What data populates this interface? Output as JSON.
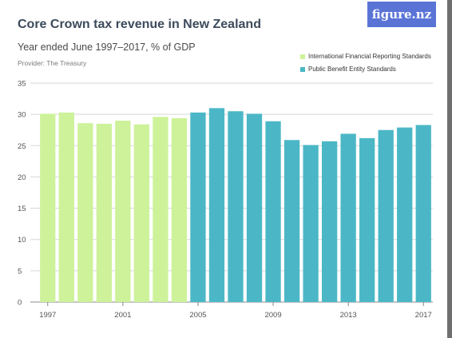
{
  "header": {
    "title": "Core Crown tax revenue in New Zealand",
    "subtitle": "Year ended June 1997–2017, % of GDP",
    "provider": "Provider: The Treasury",
    "logo": "figure.nz"
  },
  "colors": {
    "ifrs": "#cdf29a",
    "pbe": "#4bb7c6",
    "grid": "#d7d7d7",
    "logo_bg": "#5a74d6"
  },
  "chart_data": {
    "type": "bar",
    "categories": [
      "1997",
      "1998",
      "1999",
      "2000",
      "2001",
      "2002",
      "2003",
      "2004",
      "2005",
      "2006",
      "2007",
      "2008",
      "2009",
      "2010",
      "2011",
      "2012",
      "2013",
      "2014",
      "2015",
      "2016",
      "2017"
    ],
    "x_tick_labels": [
      "1997",
      "2001",
      "2005",
      "2009",
      "2013",
      "2017"
    ],
    "series": [
      {
        "name": "International Financial Reporting Standards",
        "color": "#cdf29a",
        "values": [
          30.1,
          30.3,
          28.6,
          28.5,
          29.0,
          28.4,
          29.6,
          29.4,
          null,
          null,
          null,
          null,
          null,
          null,
          null,
          null,
          null,
          null,
          null,
          null,
          null
        ]
      },
      {
        "name": "Public Benefit Entity Standards",
        "color": "#4bb7c6",
        "values": [
          null,
          null,
          null,
          null,
          null,
          null,
          null,
          null,
          30.3,
          31.0,
          30.5,
          30.1,
          28.9,
          25.9,
          25.1,
          25.7,
          26.9,
          26.2,
          27.5,
          27.9,
          28.3
        ]
      }
    ],
    "y_ticks": [
      0,
      5,
      10,
      15,
      20,
      25,
      30,
      35
    ],
    "ylim": [
      0,
      35
    ],
    "grid": true,
    "legend_position": "top-right"
  }
}
